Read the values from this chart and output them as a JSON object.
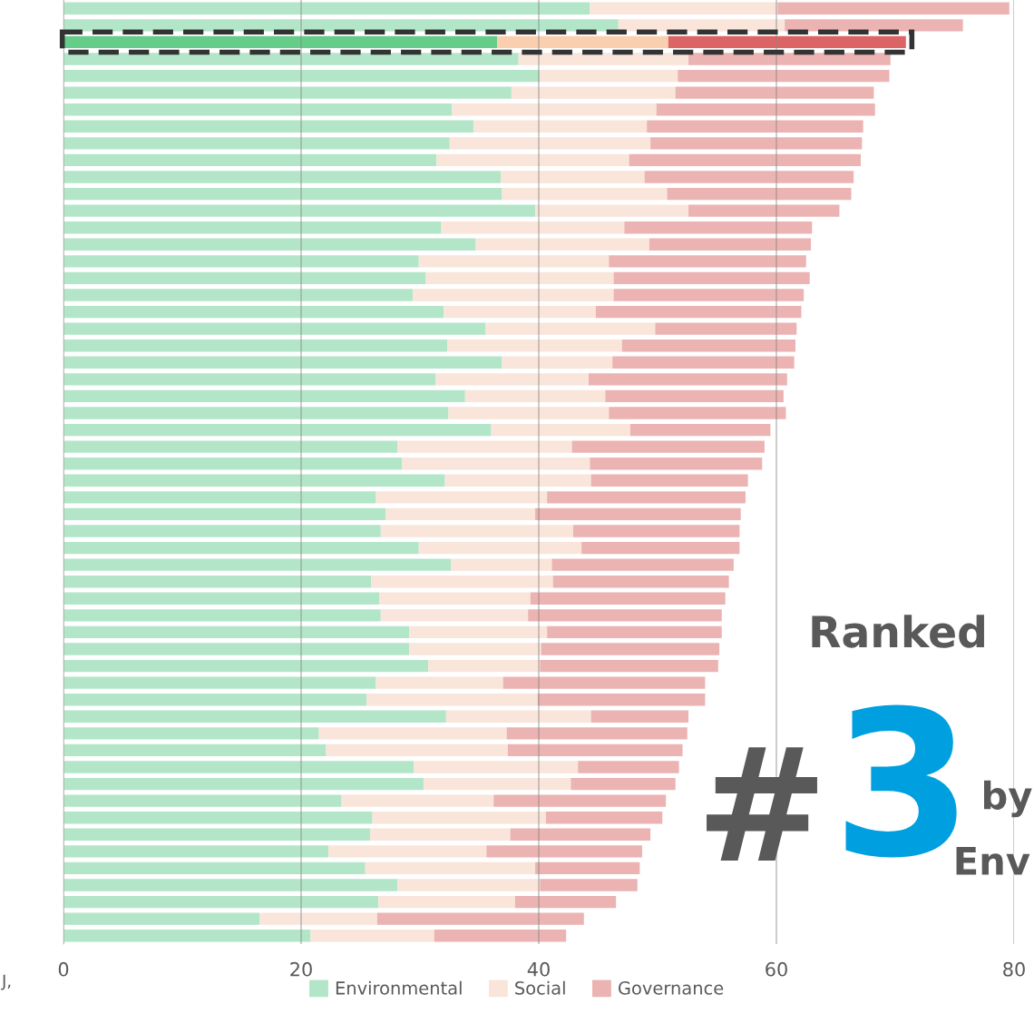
{
  "chart_data": {
    "type": "bar",
    "orientation": "horizontal",
    "stacked": true,
    "categories": [
      null,
      null,
      null,
      null,
      null,
      null,
      null,
      null,
      null,
      null,
      null,
      null,
      null,
      null,
      null,
      null,
      null,
      null,
      null,
      null,
      null,
      null,
      null,
      null,
      null,
      null,
      null,
      null,
      null,
      null,
      null,
      null,
      null,
      null,
      null,
      null,
      null,
      null,
      null,
      null,
      null,
      null,
      null,
      null,
      null,
      null,
      null,
      null,
      null,
      null,
      null,
      null,
      null,
      null,
      null,
      null
    ],
    "series": [
      {
        "name": "Environmental",
        "color": "#b3e6c8",
        "colors": [
          "#b3e6c8",
          "#b3e6c8",
          "#66cc8a",
          "#b3e6c8",
          "#b3e6c8",
          "#b3e6c8",
          "#b3e6c8",
          "#b3e6c8",
          "#b3e6c8",
          "#b3e6c8",
          "#b3e6c8",
          "#b3e6c8",
          "#b3e6c8",
          "#b3e6c8",
          "#b3e6c8",
          "#b3e6c8",
          "#b3e6c8",
          "#b3e6c8",
          "#b3e6c8",
          "#b3e6c8",
          "#b3e6c8",
          "#b3e6c8",
          "#b3e6c8",
          "#b3e6c8",
          "#b3e6c8",
          "#b3e6c8",
          "#b3e6c8",
          "#b3e6c8",
          "#b3e6c8",
          "#b3e6c8",
          "#b3e6c8",
          "#b3e6c8",
          "#b3e6c8",
          "#b3e6c8",
          "#b3e6c8",
          "#b3e6c8",
          "#b3e6c8",
          "#b3e6c8",
          "#b3e6c8",
          "#b3e6c8",
          "#b3e6c8",
          "#b3e6c8",
          "#b3e6c8",
          "#b3e6c8",
          "#b3e6c8",
          "#b3e6c8",
          "#b3e6c8",
          "#b3e6c8",
          "#b3e6c8",
          "#b3e6c8",
          "#b3e6c8",
          "#b3e6c8",
          "#b3e6c8",
          "#b3e6c8",
          "#b3e6c8",
          "#b3e6c8"
        ],
        "values": [
          44.3,
          46.7,
          36.5,
          38.3,
          40.1,
          37.7,
          32.7,
          34.5,
          32.5,
          31.4,
          36.8,
          36.9,
          39.7,
          31.8,
          34.7,
          29.9,
          30.5,
          29.4,
          32.0,
          35.5,
          32.3,
          36.9,
          31.3,
          33.8,
          32.4,
          36.0,
          28.1,
          28.5,
          32.1,
          26.3,
          27.1,
          26.7,
          29.9,
          32.6,
          25.9,
          26.6,
          26.7,
          29.1,
          29.1,
          30.7,
          26.3,
          25.5,
          32.2,
          21.5,
          22.1,
          29.5,
          30.3,
          23.4,
          26.0,
          25.8,
          22.3,
          25.4,
          28.1,
          26.5,
          16.5,
          20.8
        ]
      },
      {
        "name": "Social",
        "color": "#f9e5da",
        "colors": [
          "#f9e5da",
          "#f9e5da",
          "#f9cfb0",
          "#f9e5da",
          "#f9e5da",
          "#f9e5da",
          "#f9e5da",
          "#f9e5da",
          "#f9e5da",
          "#f9e5da",
          "#f9e5da",
          "#f9e5da",
          "#f9e5da",
          "#f9e5da",
          "#f9e5da",
          "#f9e5da",
          "#f9e5da",
          "#f9e5da",
          "#f9e5da",
          "#f9e5da",
          "#f9e5da",
          "#f9e5da",
          "#f9e5da",
          "#f9e5da",
          "#f9e5da",
          "#f9e5da",
          "#f9e5da",
          "#f9e5da",
          "#f9e5da",
          "#f9e5da",
          "#f9e5da",
          "#f9e5da",
          "#f9e5da",
          "#f9e5da",
          "#f9e5da",
          "#f9e5da",
          "#f9e5da",
          "#f9e5da",
          "#f9e5da",
          "#f9e5da",
          "#f9e5da",
          "#f9e5da",
          "#f9e5da",
          "#f9e5da",
          "#f9e5da",
          "#f9e5da",
          "#f9e5da",
          "#f9e5da",
          "#f9e5da",
          "#f9e5da",
          "#f9e5da",
          "#f9e5da",
          "#f9e5da",
          "#f9e5da",
          "#f9e5da",
          "#f9e5da"
        ],
        "values": [
          15.8,
          14.0,
          14.4,
          14.3,
          11.6,
          13.8,
          17.2,
          14.6,
          16.9,
          16.2,
          12.1,
          13.9,
          12.9,
          15.4,
          14.6,
          16.0,
          15.8,
          16.9,
          12.8,
          14.3,
          14.7,
          9.3,
          12.9,
          11.8,
          13.5,
          11.7,
          14.7,
          15.8,
          12.3,
          14.4,
          12.6,
          16.2,
          13.7,
          8.5,
          15.3,
          12.7,
          12.4,
          11.6,
          11.1,
          9.4,
          10.7,
          14.4,
          12.2,
          15.8,
          15.3,
          13.8,
          12.4,
          12.8,
          14.6,
          11.8,
          13.3,
          14.3,
          12.0,
          11.5,
          9.9,
          10.4
        ]
      },
      {
        "name": "Governance",
        "color": "#ebb3b2",
        "colors": [
          "#ebb3b2",
          "#ebb3b2",
          "#dc6464",
          "#ebb3b2",
          "#ebb3b2",
          "#ebb3b2",
          "#ebb3b2",
          "#ebb3b2",
          "#ebb3b2",
          "#ebb3b2",
          "#ebb3b2",
          "#ebb3b2",
          "#ebb3b2",
          "#ebb3b2",
          "#ebb3b2",
          "#ebb3b2",
          "#ebb3b2",
          "#ebb3b2",
          "#ebb3b2",
          "#ebb3b2",
          "#ebb3b2",
          "#ebb3b2",
          "#ebb3b2",
          "#ebb3b2",
          "#ebb3b2",
          "#ebb3b2",
          "#ebb3b2",
          "#ebb3b2",
          "#ebb3b2",
          "#ebb3b2",
          "#ebb3b2",
          "#ebb3b2",
          "#ebb3b2",
          "#ebb3b2",
          "#ebb3b2",
          "#ebb3b2",
          "#ebb3b2",
          "#ebb3b2",
          "#ebb3b2",
          "#ebb3b2",
          "#ebb3b2",
          "#ebb3b2",
          "#ebb3b2",
          "#ebb3b2",
          "#ebb3b2",
          "#ebb3b2",
          "#ebb3b2",
          "#ebb3b2",
          "#ebb3b2",
          "#ebb3b2",
          "#ebb3b2",
          "#ebb3b2",
          "#ebb3b2",
          "#ebb3b2",
          "#ebb3b2",
          "#ebb3b2"
        ],
        "values": [
          19.5,
          15.0,
          20.0,
          17.0,
          17.8,
          16.7,
          18.4,
          18.2,
          17.8,
          19.5,
          17.6,
          15.5,
          12.7,
          15.8,
          13.6,
          16.6,
          16.5,
          16.0,
          17.3,
          11.9,
          14.6,
          15.3,
          16.7,
          15.0,
          14.9,
          11.8,
          16.2,
          14.5,
          13.2,
          16.7,
          17.3,
          14.0,
          13.3,
          15.3,
          14.8,
          16.4,
          16.3,
          14.7,
          15.0,
          15.0,
          17.0,
          14.1,
          8.2,
          15.2,
          14.7,
          8.5,
          8.8,
          14.5,
          9.8,
          11.8,
          13.1,
          8.8,
          8.2,
          8.5,
          17.4,
          11.1
        ]
      }
    ],
    "xlim": [
      0,
      80
    ],
    "xticks": [
      0,
      20,
      40,
      60,
      80
    ],
    "grid": "x",
    "legend": "bottom",
    "annotations": [
      "Ranked",
      "#",
      "3",
      "by",
      "Env",
      "J,"
    ]
  }
}
